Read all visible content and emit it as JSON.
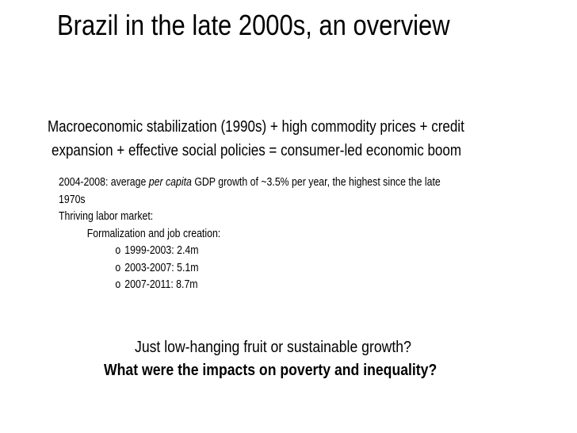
{
  "slide": {
    "title": "Brazil in the late 2000s, an overview",
    "headline_line1": "Macroeconomic stabilization (1990s) + high commodity prices + credit",
    "headline_line2": "expansion + effective social policies = consumer-led economic boom",
    "gdp_prefix": "2004-2008: average ",
    "gdp_italic": "per capita",
    "gdp_suffix": " GDP growth of ~3.5% per year, the highest since the late",
    "gdp_continued": "1970s",
    "labor_market": "Thriving labor market:",
    "formalization": "Formalization and job creation:",
    "bullet_glyph": "o",
    "job_creation": [
      "1999-2003: 2.4m",
      "2003-2007: 5.1m",
      "2007-2011: 8.7m"
    ],
    "question": "Just low-hanging fruit or sustainable growth?",
    "impacts_question": "What were the impacts on poverty and inequality?"
  }
}
